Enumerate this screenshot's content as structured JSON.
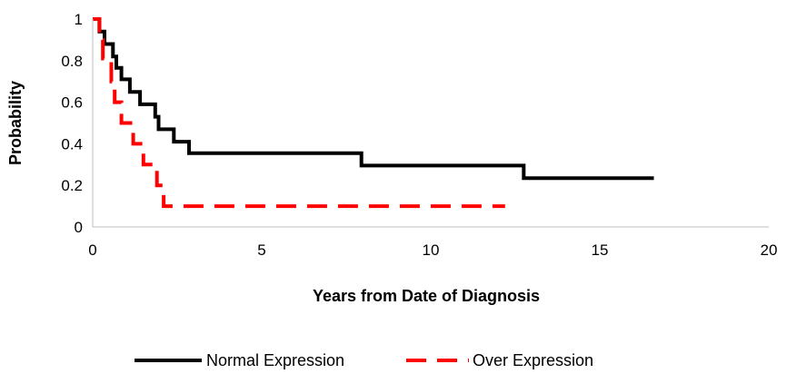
{
  "chart_data": {
    "type": "line",
    "title": "",
    "xlabel": "Years from Date of Diagnosis",
    "ylabel": "Probability",
    "xlim": [
      0,
      20
    ],
    "ylim": [
      0,
      1
    ],
    "x_ticks": [
      "0",
      "5",
      "10",
      "15",
      "20"
    ],
    "y_ticks": [
      "0",
      "0.2",
      "0.4",
      "0.6",
      "0.8",
      "1"
    ],
    "grid": false,
    "legend_position": "bottom",
    "series": [
      {
        "name": "Normal Expression",
        "color": "#000000",
        "style": "solid-step",
        "points": [
          [
            0,
            1
          ],
          [
            0.2,
            1
          ],
          [
            0.2,
            0.94
          ],
          [
            0.35,
            0.94
          ],
          [
            0.35,
            0.88
          ],
          [
            0.6,
            0.88
          ],
          [
            0.6,
            0.82
          ],
          [
            0.7,
            0.82
          ],
          [
            0.7,
            0.765
          ],
          [
            0.85,
            0.765
          ],
          [
            0.85,
            0.71
          ],
          [
            1.1,
            0.71
          ],
          [
            1.1,
            0.65
          ],
          [
            1.4,
            0.65
          ],
          [
            1.4,
            0.59
          ],
          [
            1.85,
            0.59
          ],
          [
            1.85,
            0.53
          ],
          [
            1.95,
            0.53
          ],
          [
            1.95,
            0.47
          ],
          [
            2.4,
            0.47
          ],
          [
            2.4,
            0.41
          ],
          [
            2.85,
            0.41
          ],
          [
            2.85,
            0.355
          ],
          [
            7.95,
            0.355
          ],
          [
            7.95,
            0.295
          ],
          [
            12.75,
            0.295
          ],
          [
            12.75,
            0.235
          ],
          [
            16.6,
            0.235
          ]
        ]
      },
      {
        "name": "Over Expression",
        "color": "#ff0000",
        "style": "dashed-step",
        "points": [
          [
            0,
            1
          ],
          [
            0.2,
            1
          ],
          [
            0.2,
            0.9
          ],
          [
            0.3,
            0.9
          ],
          [
            0.3,
            0.81
          ],
          [
            0.55,
            0.81
          ],
          [
            0.55,
            0.7
          ],
          [
            0.65,
            0.7
          ],
          [
            0.65,
            0.6
          ],
          [
            0.85,
            0.6
          ],
          [
            0.85,
            0.5
          ],
          [
            1.2,
            0.5
          ],
          [
            1.2,
            0.4
          ],
          [
            1.5,
            0.4
          ],
          [
            1.5,
            0.3
          ],
          [
            1.9,
            0.3
          ],
          [
            1.9,
            0.2
          ],
          [
            2.1,
            0.2
          ],
          [
            2.1,
            0.1
          ],
          [
            12.2,
            0.1
          ]
        ]
      }
    ]
  }
}
